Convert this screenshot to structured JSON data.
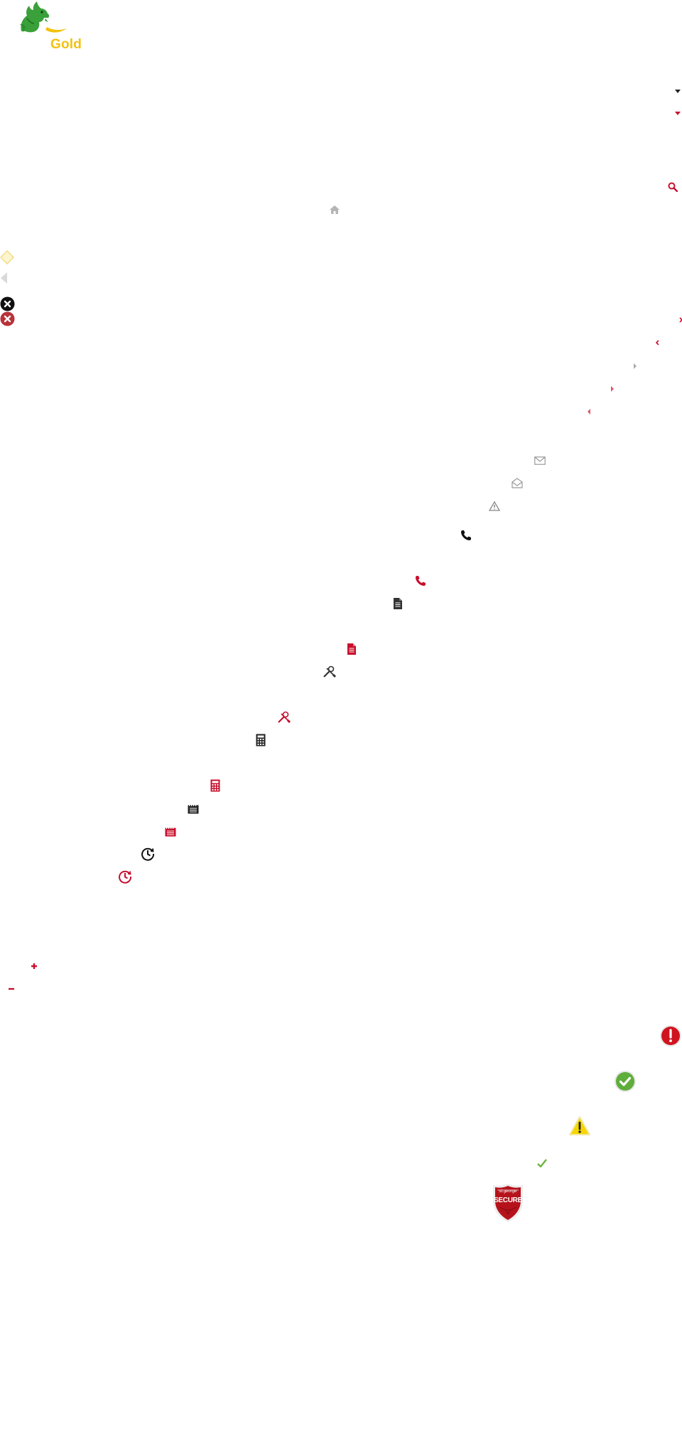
{
  "logo": {
    "brand_text": "Gold",
    "colors": {
      "dragon": "#3aa03a",
      "swoosh": "#f2c20f",
      "text": "#f2c20f"
    }
  },
  "colors": {
    "red": "#c8102e",
    "black": "#222222",
    "gray": "#aaaaaa",
    "green": "#6cb33f",
    "yellow": "#f6d600"
  },
  "icons": [
    "caret-down-icon",
    "caret-down-red-icon",
    "search-icon",
    "home-icon",
    "diamond-icon",
    "triangle-left-icon",
    "close-circle-icon",
    "close-circle-red-icon",
    "chevron-right-red-icon",
    "chevron-left-red-icon",
    "chevron-right-gray-icon",
    "chevron-right-red-small-icon",
    "chevron-left-red-small-icon",
    "envelope-icon",
    "envelope-open-icon",
    "warning-outline-icon",
    "phone-icon",
    "phone-red-icon",
    "document-icon",
    "document-red-icon",
    "tools-icon",
    "tools-red-icon",
    "calculator-icon",
    "calculator-red-icon",
    "notepad-icon",
    "notepad-red-icon",
    "history-clock-icon",
    "history-clock-red-icon",
    "plus-icon",
    "minus-icon",
    "error-badge-icon",
    "success-badge-icon",
    "warning-badge-icon",
    "checkmark-icon",
    "secure-shield-icon"
  ],
  "secure_badge": {
    "top_text": "st.george",
    "main_text": "SECURE"
  }
}
